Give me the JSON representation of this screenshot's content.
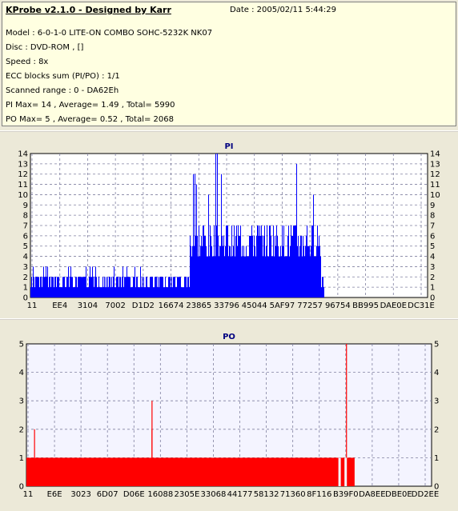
{
  "header": {
    "title": "KProbe v2.1.0 - Designed by Karr",
    "date": "Date : 2005/02/11 5:44:29",
    "lines": [
      "Model : 6-0-1-0 LITE-ON COMBO SOHC-5232K NK07",
      "Disc : DVD-ROM ,  []",
      "Speed : 8x",
      "ECC blocks sum (PI/PO) : 1/1",
      "Scanned range : 0 - DA62Eh",
      "PI Max= 14 , Average= 1.49 , Total= 5990",
      "PO Max= 5 , Average= 0.52 , Total= 2068"
    ]
  },
  "chart_data": [
    {
      "type": "bar",
      "title": "PI",
      "ylim": [
        0,
        14
      ],
      "yticks": [
        "0",
        "1",
        "2",
        "3",
        "4",
        "5",
        "6",
        "7",
        "8",
        "9",
        "10",
        "11",
        "12",
        "13",
        "14"
      ],
      "xticks": [
        "11",
        "EE4",
        "3104",
        "7002",
        "D1D2",
        "16674",
        "23865",
        "33796",
        "45044",
        "5AF97",
        "77257",
        "96754",
        "BB995",
        "DAE0E",
        "DC31E"
      ],
      "grid": true,
      "color": "#0000ff",
      "background": "#ffffff",
      "series": [
        {
          "segments": [
            {
              "from": 0.0,
              "to": 0.4,
              "typical": 1,
              "peak": 3
            },
            {
              "from": 0.4,
              "to": 0.73,
              "typical": 5,
              "peak": 14
            },
            {
              "from": 0.73,
              "to": 0.74,
              "typical": 1,
              "peak": 7
            }
          ]
        }
      ]
    },
    {
      "type": "bar",
      "title": "PO",
      "ylim": [
        0,
        5
      ],
      "yticks": [
        "0",
        "1",
        "2",
        "3",
        "4",
        "5"
      ],
      "xticks": [
        "11",
        "E6E",
        "3023",
        "6D07",
        "D06E",
        "16088",
        "2305E",
        "33068",
        "44177",
        "58132",
        "71360",
        "8F116",
        "B39F0",
        "DA8EE",
        "DBE0E",
        "DD2EE"
      ],
      "grid": true,
      "color": "#ff0000",
      "background": "#f4f4ff",
      "series": [
        {
          "baseline": 1,
          "covers": [
            0.0,
            0.81
          ],
          "spikes": [
            {
              "at": 0.02,
              "value": 2
            },
            {
              "at": 0.31,
              "value": 3
            },
            {
              "at": 0.31,
              "value": 2
            },
            {
              "at": 0.79,
              "value": 5
            }
          ],
          "gaps": [
            0.77,
            0.785
          ]
        }
      ]
    }
  ]
}
